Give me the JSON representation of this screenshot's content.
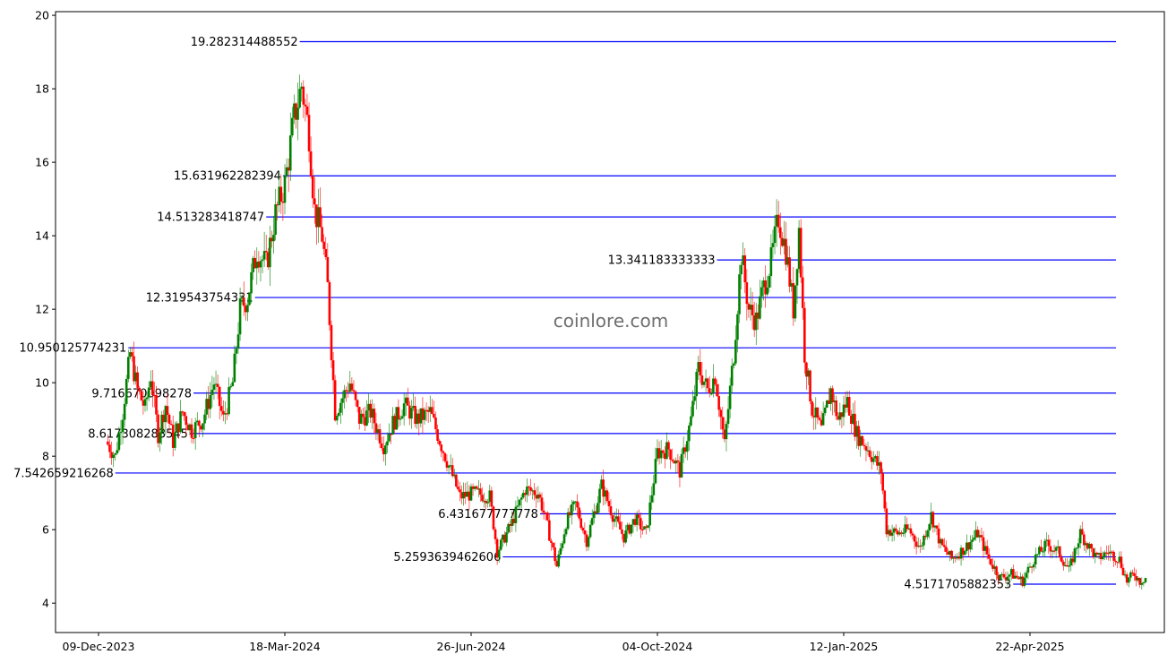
{
  "watermark": "coinlore.com",
  "chart_data": {
    "type": "candlestick",
    "title": "",
    "xlabel": "",
    "ylabel": "",
    "ylim": [
      3.2,
      20.1
    ],
    "grid": false,
    "x_ticks": [
      "09-Dec-2023",
      "18-Mar-2024",
      "26-Jun-2024",
      "04-Oct-2024",
      "12-Jan-2025",
      "22-Apr-2025"
    ],
    "y_ticks": [
      4,
      6,
      8,
      10,
      12,
      14,
      16,
      18,
      20
    ],
    "colors": {
      "up": "#008000",
      "down": "#ff0000",
      "level": "#0000ff"
    },
    "levels": [
      {
        "value": 19.282314488552,
        "label": "19.282314488552",
        "start": "2024-03-26"
      },
      {
        "value": 15.631962282394,
        "label": "15.631962282394",
        "start": "2024-03-17"
      },
      {
        "value": 14.513283418747,
        "label": "14.513283418747",
        "start": "2024-03-08"
      },
      {
        "value": 13.341183333333,
        "label": "13.341183333333",
        "start": "2024-11-05"
      },
      {
        "value": 12.319543754331,
        "label": "12.319543754331",
        "start": "2024-03-02"
      },
      {
        "value": 10.950125774231,
        "label": "10.950125774231",
        "start": "2023-12-25"
      },
      {
        "value": 9.716670098278,
        "label": "9.716670098278",
        "start": "2024-01-29"
      },
      {
        "value": 8.617308283545,
        "label": "8.617308283545",
        "start": "2024-01-27"
      },
      {
        "value": 7.542659216268,
        "label": "7.542659216268",
        "start": "2023-12-18"
      },
      {
        "value": 6.431677777778,
        "label": "6.431677777778",
        "start": "2024-08-02"
      },
      {
        "value": 5.259363946261,
        "label": "5.2593639462606",
        "start": "2024-07-13"
      },
      {
        "value": 4.517170588235,
        "label": "4.5171705882353",
        "start": "2025-04-13"
      }
    ],
    "series": [
      {
        "name": "",
        "points": [
          [
            "2023-12-13",
            8.4
          ],
          [
            "2023-12-18",
            8.0
          ],
          [
            "2023-12-22",
            9.2
          ],
          [
            "2023-12-26",
            10.8
          ],
          [
            "2023-12-30",
            9.8
          ],
          [
            "2024-01-03",
            9.3
          ],
          [
            "2024-01-06",
            10.2
          ],
          [
            "2024-01-10",
            8.6
          ],
          [
            "2024-01-14",
            9.4
          ],
          [
            "2024-01-18",
            8.4
          ],
          [
            "2024-01-23",
            9.2
          ],
          [
            "2024-01-28",
            8.7
          ],
          [
            "2024-02-03",
            9.0
          ],
          [
            "2024-02-09",
            10.0
          ],
          [
            "2024-02-14",
            9.0
          ],
          [
            "2024-02-19",
            10.0
          ],
          [
            "2024-02-23",
            12.0
          ],
          [
            "2024-02-27",
            12.3
          ],
          [
            "2024-03-03",
            13.6
          ],
          [
            "2024-03-08",
            13.2
          ],
          [
            "2024-03-13",
            14.6
          ],
          [
            "2024-03-18",
            15.4
          ],
          [
            "2024-03-23",
            17.2
          ],
          [
            "2024-03-27",
            18.1
          ],
          [
            "2024-03-31",
            16.8
          ],
          [
            "2024-04-03",
            14.7
          ],
          [
            "2024-04-07",
            14.0
          ],
          [
            "2024-04-10",
            12.6
          ],
          [
            "2024-04-14",
            9.2
          ],
          [
            "2024-04-18",
            9.6
          ],
          [
            "2024-04-22",
            10.0
          ],
          [
            "2024-04-27",
            9.0
          ],
          [
            "2024-05-03",
            9.2
          ],
          [
            "2024-05-10",
            8.3
          ],
          [
            "2024-05-15",
            8.9
          ],
          [
            "2024-05-21",
            9.4
          ],
          [
            "2024-05-28",
            9.0
          ],
          [
            "2024-06-04",
            9.2
          ],
          [
            "2024-06-10",
            8.3
          ],
          [
            "2024-06-15",
            7.6
          ],
          [
            "2024-06-20",
            6.9
          ],
          [
            "2024-06-28",
            7.0
          ],
          [
            "2024-07-06",
            6.9
          ],
          [
            "2024-07-10",
            5.4
          ],
          [
            "2024-07-18",
            6.2
          ],
          [
            "2024-07-25",
            7.1
          ],
          [
            "2024-08-01",
            7.0
          ],
          [
            "2024-08-05",
            6.3
          ],
          [
            "2024-08-11",
            5.0
          ],
          [
            "2024-08-16",
            6.2
          ],
          [
            "2024-08-21",
            6.7
          ],
          [
            "2024-08-27",
            5.7
          ],
          [
            "2024-09-04",
            7.2
          ],
          [
            "2024-09-10",
            6.4
          ],
          [
            "2024-09-16",
            5.8
          ],
          [
            "2024-09-22",
            6.3
          ],
          [
            "2024-09-28",
            5.9
          ],
          [
            "2024-10-04",
            8.1
          ],
          [
            "2024-10-10",
            8.2
          ],
          [
            "2024-10-16",
            7.6
          ],
          [
            "2024-10-22",
            9.0
          ],
          [
            "2024-10-26",
            10.4
          ],
          [
            "2024-10-31",
            9.8
          ],
          [
            "2024-11-04",
            10.2
          ],
          [
            "2024-11-09",
            8.3
          ],
          [
            "2024-11-14",
            10.8
          ],
          [
            "2024-11-18",
            13.5
          ],
          [
            "2024-11-22",
            12.0
          ],
          [
            "2024-11-26",
            11.7
          ],
          [
            "2024-11-30",
            12.6
          ],
          [
            "2024-12-04",
            13.3
          ],
          [
            "2024-12-08",
            14.5
          ],
          [
            "2024-12-12",
            13.6
          ],
          [
            "2024-12-16",
            12.0
          ],
          [
            "2024-12-19",
            14.2
          ],
          [
            "2024-12-22",
            10.8
          ],
          [
            "2024-12-26",
            9.3
          ],
          [
            "2024-12-31",
            8.7
          ],
          [
            "2025-01-05",
            9.8
          ],
          [
            "2025-01-09",
            9.0
          ],
          [
            "2025-01-14",
            9.5
          ],
          [
            "2025-01-19",
            8.6
          ],
          [
            "2025-01-25",
            8.2
          ],
          [
            "2025-02-01",
            7.6
          ],
          [
            "2025-02-04",
            6.0
          ],
          [
            "2025-02-10",
            5.9
          ],
          [
            "2025-02-16",
            6.0
          ],
          [
            "2025-02-22",
            5.5
          ],
          [
            "2025-02-28",
            6.4
          ],
          [
            "2025-03-05",
            5.6
          ],
          [
            "2025-03-11",
            5.2
          ],
          [
            "2025-03-18",
            5.5
          ],
          [
            "2025-03-25",
            5.9
          ],
          [
            "2025-03-31",
            5.2
          ],
          [
            "2025-04-06",
            4.7
          ],
          [
            "2025-04-12",
            4.8
          ],
          [
            "2025-04-18",
            4.6
          ],
          [
            "2025-04-24",
            5.2
          ],
          [
            "2025-05-01",
            5.6
          ],
          [
            "2025-05-07",
            5.4
          ],
          [
            "2025-05-13",
            4.9
          ],
          [
            "2025-05-19",
            5.9
          ],
          [
            "2025-05-23",
            5.6
          ],
          [
            "2025-05-28",
            5.2
          ],
          [
            "2025-06-03",
            5.4
          ],
          [
            "2025-06-09",
            5.2
          ],
          [
            "2025-06-13",
            4.6
          ],
          [
            "2025-06-17",
            4.8
          ],
          [
            "2025-06-20",
            4.6
          ],
          [
            "2025-06-23",
            4.7
          ]
        ]
      }
    ]
  }
}
